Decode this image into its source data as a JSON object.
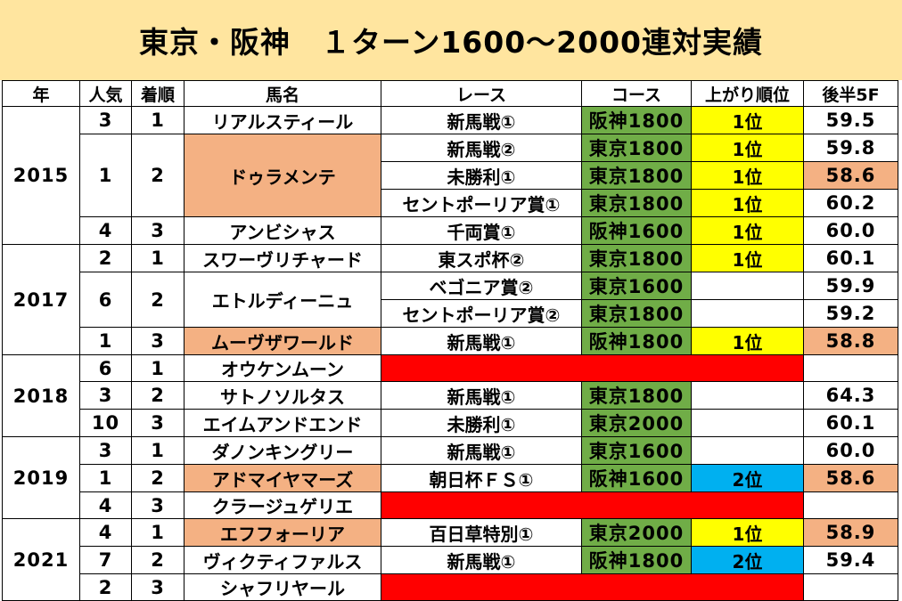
{
  "title": "東京・阪神　１ターン1600～2000連対実績",
  "headers": [
    "年",
    "人気",
    "着順",
    "馬名",
    "レース",
    "コース",
    "上がり順位",
    "後半5F"
  ],
  "years": [
    {
      "year": "2015",
      "horses": [
        {
          "pop": "3",
          "rank": "1",
          "name": "リアルスティール",
          "highlight": false,
          "races": [
            {
              "race": "新馬戦①",
              "course": "阪神1800",
              "agari": "1位",
              "agari_color": "yellow",
              "time": "59.5",
              "time_hl": false
            }
          ]
        },
        {
          "pop": "1",
          "rank": "2",
          "name": "ドゥラメンテ",
          "highlight": true,
          "races": [
            {
              "race": "新馬戦②",
              "course": "東京1800",
              "agari": "1位",
              "agari_color": "yellow",
              "time": "59.8",
              "time_hl": false
            },
            {
              "race": "未勝利①",
              "course": "東京1800",
              "agari": "1位",
              "agari_color": "yellow",
              "time": "58.6",
              "time_hl": true
            },
            {
              "race": "セントポーリア賞①",
              "course": "東京1800",
              "agari": "1位",
              "agari_color": "yellow",
              "time": "60.2",
              "time_hl": false
            }
          ]
        },
        {
          "pop": "4",
          "rank": "3",
          "name": "アンビシャス",
          "highlight": false,
          "races": [
            {
              "race": "千両賞①",
              "course": "阪神1600",
              "agari": "1位",
              "agari_color": "yellow",
              "time": "60.0",
              "time_hl": false
            }
          ]
        }
      ]
    },
    {
      "year": "2017",
      "horses": [
        {
          "pop": "2",
          "rank": "1",
          "name": "スワーヴリチャード",
          "highlight": false,
          "races": [
            {
              "race": "東スポ杯②",
              "course": "東京1800",
              "agari": "1位",
              "agari_color": "yellow",
              "time": "60.1",
              "time_hl": false
            }
          ]
        },
        {
          "pop": "6",
          "rank": "2",
          "name": "エトルディーニュ",
          "highlight": false,
          "races": [
            {
              "race": "ベゴニア賞②",
              "course": "東京1600",
              "agari": "",
              "agari_color": "",
              "time": "59.9",
              "time_hl": false
            },
            {
              "race": "セントポーリア賞②",
              "course": "東京1800",
              "agari": "",
              "agari_color": "",
              "time": "59.2",
              "time_hl": false
            }
          ]
        },
        {
          "pop": "1",
          "rank": "3",
          "name": "ムーヴザワールド",
          "highlight": true,
          "races": [
            {
              "race": "新馬戦①",
              "course": "阪神1800",
              "agari": "1位",
              "agari_color": "yellow",
              "time": "58.8",
              "time_hl": true
            }
          ]
        }
      ]
    },
    {
      "year": "2018",
      "horses": [
        {
          "pop": "6",
          "rank": "1",
          "name": "オウケンムーン",
          "highlight": false,
          "none": true,
          "races": []
        },
        {
          "pop": "3",
          "rank": "2",
          "name": "サトノソルタス",
          "highlight": false,
          "races": [
            {
              "race": "新馬戦①",
              "course": "東京1800",
              "agari": "",
              "agari_color": "",
              "time": "64.3",
              "time_hl": false
            }
          ]
        },
        {
          "pop": "10",
          "rank": "3",
          "name": "エイムアンドエンド",
          "highlight": false,
          "races": [
            {
              "race": "未勝利①",
              "course": "東京2000",
              "agari": "",
              "agari_color": "",
              "time": "60.1",
              "time_hl": false
            }
          ]
        }
      ]
    },
    {
      "year": "2019",
      "horses": [
        {
          "pop": "3",
          "rank": "1",
          "name": "ダノンキングリー",
          "highlight": false,
          "races": [
            {
              "race": "新馬戦①",
              "course": "東京1600",
              "agari": "",
              "agari_color": "",
              "time": "60.0",
              "time_hl": false
            }
          ]
        },
        {
          "pop": "1",
          "rank": "2",
          "name": "アドマイヤマーズ",
          "highlight": true,
          "races": [
            {
              "race": "朝日杯ＦＳ①",
              "course": "阪神1600",
              "agari": "2位",
              "agari_color": "blue",
              "time": "58.6",
              "time_hl": true
            }
          ]
        },
        {
          "pop": "4",
          "rank": "3",
          "name": "クラージュゲリエ",
          "highlight": false,
          "none": true,
          "races": []
        }
      ]
    },
    {
      "year": "2021",
      "horses": [
        {
          "pop": "4",
          "rank": "1",
          "name": "エフフォーリア",
          "highlight": true,
          "races": [
            {
              "race": "百日草特別①",
              "course": "東京2000",
              "agari": "1位",
              "agari_color": "yellow",
              "time": "58.9",
              "time_hl": true
            }
          ]
        },
        {
          "pop": "7",
          "rank": "2",
          "name": "ヴィクティファルス",
          "highlight": false,
          "races": [
            {
              "race": "新馬戦①",
              "course": "阪神1800",
              "agari": "2位",
              "agari_color": "blue",
              "time": "59.4",
              "time_hl": false
            }
          ]
        },
        {
          "pop": "2",
          "rank": "3",
          "name": "シャフリヤール",
          "highlight": false,
          "none": true,
          "races": []
        }
      ]
    }
  ],
  "colors": {
    "title_bg": "#FFE59F",
    "highlight": "#F4B183",
    "course": "#70AD47",
    "agari_first": "#FFFF00",
    "agari_second": "#00B0F0",
    "no_record": "#FF0000"
  }
}
